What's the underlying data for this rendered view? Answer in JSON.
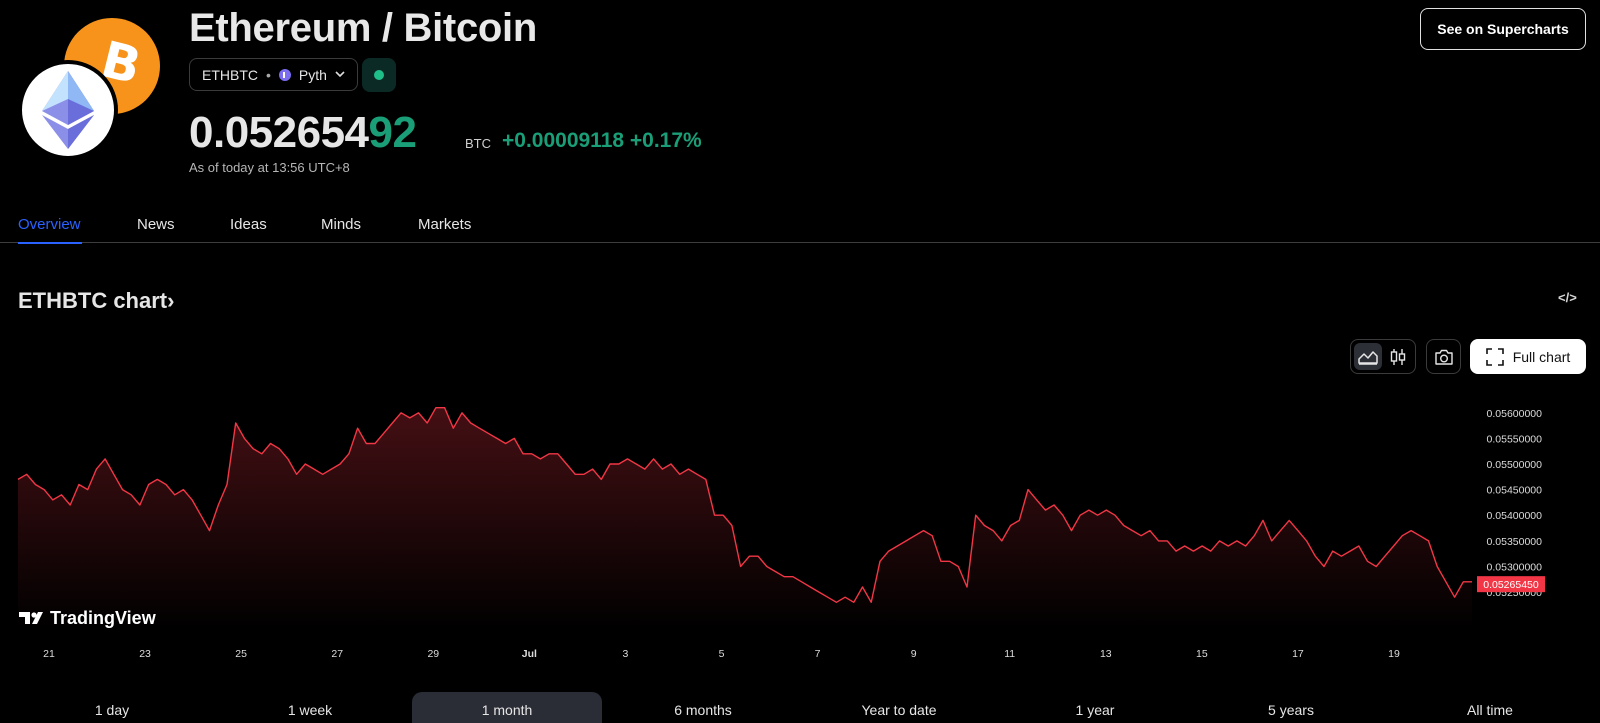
{
  "header": {
    "title": "Ethereum / Bitcoin",
    "symbol": "ETHBTC",
    "separator": "•",
    "provider": "Pyth",
    "price_main": "0.052654",
    "price_highlight": "92",
    "price_unit": "BTC",
    "change": "+0.00009118 +0.17%",
    "as_of": "As of today at 13:56 UTC+8",
    "supercharts_button": "See on Supercharts",
    "up_color": "#1a9e77"
  },
  "icons": {
    "base": "ethereum-icon",
    "quote": "bitcoin-icon",
    "btc_glyph": "B"
  },
  "tabs": [
    {
      "label": "Overview",
      "active": true
    },
    {
      "label": "News",
      "active": false
    },
    {
      "label": "Ideas",
      "active": false
    },
    {
      "label": "Minds",
      "active": false
    },
    {
      "label": "Markets",
      "active": false
    }
  ],
  "chart": {
    "title": "ETHBTC chart",
    "title_chevron": "›",
    "embed_icon": "</>",
    "full_chart_label": "Full chart",
    "brand": "TradingView",
    "line_color": "#f23645"
  },
  "chart_data": {
    "type": "area",
    "title": "ETHBTC chart",
    "x_ticks": [
      "21",
      "23",
      "25",
      "27",
      "29",
      "Jul",
      "3",
      "5",
      "7",
      "9",
      "11",
      "13",
      "15",
      "17",
      "19"
    ],
    "y_ticks": [
      "0.05600000",
      "0.05550000",
      "0.05500000",
      "0.05450000",
      "0.05400000",
      "0.05350000",
      "0.05300000",
      "0.05250000"
    ],
    "ylim": [
      0.05215,
      0.05625
    ],
    "last_value": "0.05265450",
    "series": [
      {
        "values": [
          0.0547,
          0.0548,
          0.0546,
          0.0545,
          0.0543,
          0.0544,
          0.0542,
          0.0546,
          0.0545,
          0.0549,
          0.0551,
          0.0548,
          0.0545,
          0.0544,
          0.0542,
          0.0546,
          0.0547,
          0.0546,
          0.0544,
          0.0545,
          0.0543,
          0.054,
          0.0537,
          0.0542,
          0.0546,
          0.0558,
          0.0555,
          0.0553,
          0.0552,
          0.0554,
          0.0553,
          0.0551,
          0.0548,
          0.055,
          0.0549,
          0.0548,
          0.0549,
          0.055,
          0.0552,
          0.0557,
          0.0554,
          0.0554,
          0.0556,
          0.0558,
          0.056,
          0.0559,
          0.056,
          0.0558,
          0.0561,
          0.0561,
          0.0557,
          0.056,
          0.0558,
          0.0557,
          0.0556,
          0.0555,
          0.0554,
          0.0555,
          0.0552,
          0.0552,
          0.0551,
          0.0552,
          0.0552,
          0.055,
          0.0548,
          0.0548,
          0.0549,
          0.0547,
          0.055,
          0.055,
          0.0551,
          0.055,
          0.0549,
          0.0551,
          0.0549,
          0.055,
          0.0548,
          0.0549,
          0.0548,
          0.0547,
          0.054,
          0.054,
          0.0538,
          0.053,
          0.0532,
          0.0532,
          0.053,
          0.0529,
          0.0528,
          0.0528,
          0.0527,
          0.0526,
          0.0525,
          0.0524,
          0.0523,
          0.0524,
          0.0523,
          0.0526,
          0.0523,
          0.0531,
          0.0533,
          0.0534,
          0.0535,
          0.0536,
          0.0537,
          0.0536,
          0.0531,
          0.0531,
          0.053,
          0.0526,
          0.054,
          0.0538,
          0.0537,
          0.0535,
          0.0538,
          0.0539,
          0.0545,
          0.0543,
          0.0541,
          0.0542,
          0.054,
          0.0537,
          0.054,
          0.0541,
          0.054,
          0.0541,
          0.054,
          0.0538,
          0.0537,
          0.0536,
          0.0537,
          0.0535,
          0.0535,
          0.0533,
          0.0534,
          0.0533,
          0.0534,
          0.0533,
          0.0535,
          0.0534,
          0.0535,
          0.0534,
          0.0536,
          0.0539,
          0.0535,
          0.0537,
          0.0539,
          0.0537,
          0.0535,
          0.0532,
          0.053,
          0.0533,
          0.0532,
          0.0533,
          0.0534,
          0.0531,
          0.053,
          0.0532,
          0.0534,
          0.0536,
          0.0537,
          0.0536,
          0.0535,
          0.053,
          0.0527,
          0.0524,
          0.0527,
          0.0527
        ]
      }
    ]
  },
  "ranges": [
    {
      "label": "1 day",
      "active": false
    },
    {
      "label": "1 week",
      "active": false
    },
    {
      "label": "1 month",
      "active": true
    },
    {
      "label": "6 months",
      "active": false
    },
    {
      "label": "Year to date",
      "active": false
    },
    {
      "label": "1 year",
      "active": false
    },
    {
      "label": "5 years",
      "active": false
    },
    {
      "label": "All time",
      "active": false
    }
  ]
}
